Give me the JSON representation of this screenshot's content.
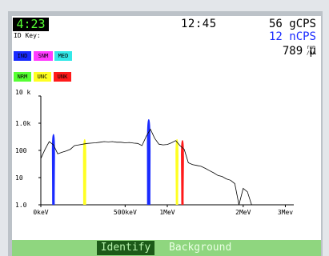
{
  "status": {
    "timer": "4:23",
    "clock": "12:45",
    "gross_count": "56 gCPS",
    "net_count": "12 nCPS",
    "dose_value": "789 µ",
    "dose_unit_top": "rem",
    "dose_unit_bottom": "/hr"
  },
  "id_key": {
    "title": "ID Key:",
    "items": [
      {
        "label": "IND",
        "color": "#1a2bff"
      },
      {
        "label": "SNM",
        "color": "#ff3cff"
      },
      {
        "label": "MED",
        "color": "#33e8e8"
      },
      {
        "label": "NRM",
        "color": "#55ff33"
      },
      {
        "label": "UNC",
        "color": "#ffff22"
      },
      {
        "label": "UNK",
        "color": "#ff1a1a"
      }
    ]
  },
  "softkeys": {
    "identify": "Identify",
    "background": "Background"
  },
  "chart_data": {
    "type": "line",
    "title": "",
    "xlabel": "",
    "ylabel": "",
    "log_y": true,
    "ylim": [
      1,
      10000
    ],
    "xlim": [
      0,
      3000
    ],
    "x_ticks": [
      {
        "value": 0,
        "label": "0keV"
      },
      {
        "value": 1000,
        "label": "500keV"
      },
      {
        "value": 1500,
        "label": "1MeV"
      },
      {
        "value": 2400,
        "label": "2MeV"
      },
      {
        "value": 2900,
        "label": "3Mev"
      }
    ],
    "y_ticks": [
      {
        "value": 1,
        "label": "1.0"
      },
      {
        "value": 10,
        "label": "10"
      },
      {
        "value": 100,
        "label": "100"
      },
      {
        "value": 1000,
        "label": "1.0k"
      },
      {
        "value": 10000,
        "label": "10 k"
      }
    ],
    "series": [
      {
        "x": [
          0,
          50,
          100,
          150,
          200,
          250,
          300,
          350,
          400,
          450,
          500,
          550,
          600,
          650,
          700,
          750,
          800,
          850,
          900,
          950,
          1000,
          1050,
          1100,
          1150,
          1200,
          1250,
          1300,
          1350,
          1400,
          1450,
          1500,
          1550,
          1600,
          1650,
          1700,
          1750,
          1800,
          1850,
          1900,
          1950,
          2000,
          2050,
          2100,
          2150,
          2200,
          2250,
          2300,
          2350,
          2400,
          2450,
          2500
        ],
        "y": [
          50,
          110,
          210,
          160,
          75,
          85,
          95,
          110,
          150,
          160,
          170,
          180,
          185,
          190,
          200,
          210,
          205,
          210,
          200,
          200,
          190,
          195,
          185,
          180,
          150,
          330,
          600,
          280,
          170,
          160,
          165,
          190,
          230,
          150,
          110,
          35,
          30,
          28,
          26,
          22,
          18,
          15,
          12,
          11,
          9,
          8,
          6,
          1,
          4,
          3,
          1
        ]
      }
    ],
    "peaks": [
      {
        "x": 150,
        "width": 30,
        "y": 400,
        "id": "IND"
      },
      {
        "x": 520,
        "width": 35,
        "y": 260,
        "id": "UNC"
      },
      {
        "x": 1280,
        "width": 40,
        "y": 1400,
        "id": "IND"
      },
      {
        "x": 1615,
        "width": 28,
        "y": 260,
        "id": "UNC"
      },
      {
        "x": 1680,
        "width": 28,
        "y": 240,
        "id": "UNK"
      }
    ]
  }
}
